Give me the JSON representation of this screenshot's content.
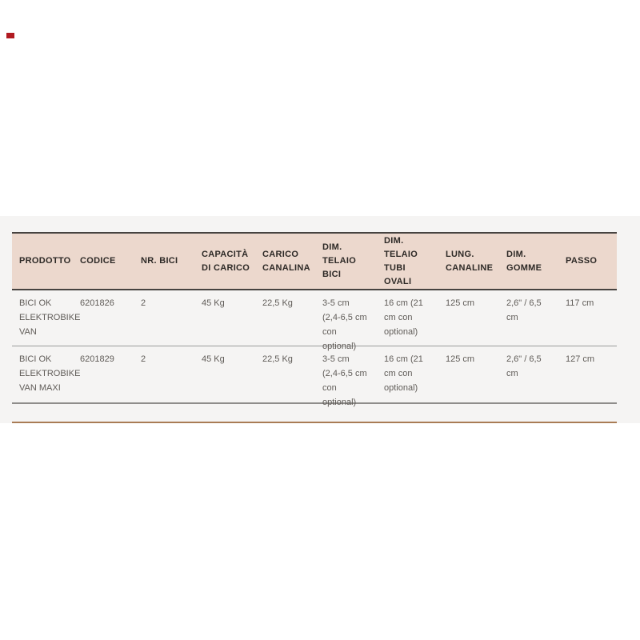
{
  "page": {
    "background_color": "#ffffff",
    "band_background_color": "#f5f4f3",
    "accent_line_color": "#a97c55",
    "logo_mark_color": "#b11a21"
  },
  "table": {
    "header_background": "#ecd8cd",
    "header_text_color": "#2d2926",
    "body_text_color": "#605c58",
    "border_dark_color": "#474340",
    "border_light_color": "#9b9b9b",
    "columns": [
      "PRODOTTO",
      "CODICE",
      "NR. BICI",
      "CAPACITÀ\nDI CARICO",
      "CARICO\nCANALINA",
      "DIM.\nTELAIO\nBICI",
      "DIM.\nTELAIO\nTUBI\nOVALI",
      "LUNG.\nCANALINE",
      "DIM.\nGOMME",
      "PASSO"
    ],
    "rows": [
      {
        "cells": [
          "BICI OK\nELEKTROBIKE\nVAN",
          "6201826",
          "2",
          "45 Kg",
          "22,5 Kg",
          "3-5 cm\n(2,4-6,5 cm\ncon\noptional)",
          "16 cm (21\ncm con\noptional)",
          "125 cm",
          "2,6\" / 6,5\ncm",
          "117 cm"
        ]
      },
      {
        "cells": [
          "BICI OK\nELEKTROBIKE\nVAN MAXI",
          "6201829",
          "2",
          "45 Kg",
          "22,5 Kg",
          "3-5 cm\n(2,4-6,5 cm\ncon\noptional)",
          "16 cm (21\ncm con\noptional)",
          "125 cm",
          "2,6\" / 6,5\ncm",
          "127 cm"
        ]
      }
    ]
  }
}
